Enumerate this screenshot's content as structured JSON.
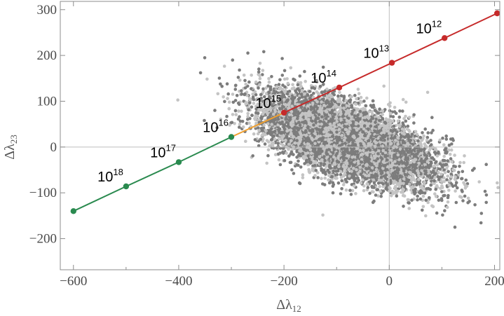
{
  "chart_data": {
    "type": "scatter",
    "title": "",
    "xlabel": "Δλ",
    "xlabel_sub": "12",
    "ylabel": "Δλ",
    "ylabel_sub": "23",
    "xlim": [
      -625,
      210
    ],
    "ylim": [
      -268,
      318
    ],
    "xticks": [
      -600,
      -400,
      -200,
      0,
      200
    ],
    "yticks": [
      -200,
      -100,
      0,
      100,
      200,
      300
    ],
    "xtick_labels": [
      "−600",
      "−400",
      "−200",
      "0",
      "200"
    ],
    "ytick_labels": [
      "−200",
      "−100",
      "0",
      "100",
      "200",
      "300"
    ],
    "grid": false,
    "zero_lines": true,
    "cloud": {
      "colors": [
        "#c4c4c4",
        "#7c7c7c"
      ],
      "approx_points": 9000,
      "center": [
        -80,
        15
      ],
      "spread_x": 80,
      "spread_y": 48,
      "correlation": -0.62
    },
    "series": [
      {
        "color": "#2a8a4f",
        "points": [
          {
            "x": -600,
            "y": -140
          },
          {
            "x": -500,
            "y": -86,
            "label_base": "10",
            "label_exp": "18"
          },
          {
            "x": -400,
            "y": -33,
            "label_base": "10",
            "label_exp": "17"
          },
          {
            "x": -300,
            "y": 22,
            "label_base": "10",
            "label_exp": "16"
          }
        ]
      },
      {
        "color": "#f0a030",
        "points": [
          {
            "x": -300,
            "y": 22
          },
          {
            "x": -200,
            "y": 75
          }
        ]
      },
      {
        "color": "#c62a2a",
        "points": [
          {
            "x": -200,
            "y": 75,
            "label_base": "10",
            "label_exp": "15"
          },
          {
            "x": -95,
            "y": 130,
            "label_base": "10",
            "label_exp": "14"
          },
          {
            "x": 5,
            "y": 184,
            "label_base": "10",
            "label_exp": "13"
          },
          {
            "x": 105,
            "y": 238,
            "label_base": "10",
            "label_exp": "12"
          },
          {
            "x": 205,
            "y": 292
          }
        ]
      }
    ]
  }
}
